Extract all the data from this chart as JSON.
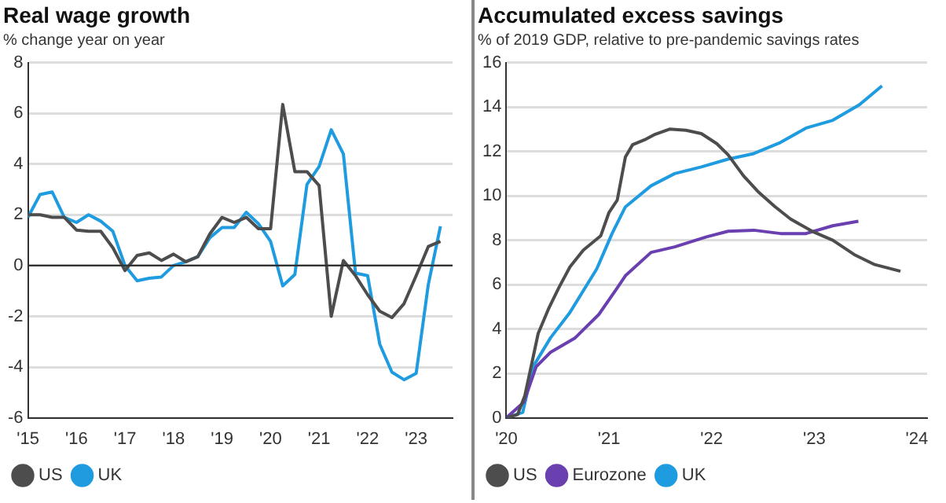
{
  "chart_data": [
    {
      "type": "line",
      "title": "Real wage growth",
      "subtitle": "% change year on year",
      "xlim": [
        2015,
        2023.75
      ],
      "xticks": [
        {
          "value": 2015,
          "label": "'15"
        },
        {
          "value": 2016,
          "label": "'16"
        },
        {
          "value": 2017,
          "label": "'17"
        },
        {
          "value": 2018,
          "label": "'18"
        },
        {
          "value": 2019,
          "label": "'19"
        },
        {
          "value": 2020,
          "label": "'20"
        },
        {
          "value": 2021,
          "label": "'21"
        },
        {
          "value": 2022,
          "label": "'22"
        },
        {
          "value": 2023,
          "label": "'23"
        }
      ],
      "ylim": [
        -6,
        8
      ],
      "yticks": [
        -6,
        -4,
        -2,
        0,
        2,
        4,
        6,
        8
      ],
      "grid": "y",
      "legend": "bottom",
      "marker": "none",
      "line_style": "solid",
      "ref_lines": [
        {
          "axis": "y",
          "value": 0,
          "color": "#333333"
        }
      ],
      "x": [
        2015,
        2015.25,
        2015.5,
        2015.75,
        2016,
        2016.25,
        2016.5,
        2016.75,
        2017,
        2017.25,
        2017.5,
        2017.75,
        2018,
        2018.25,
        2018.5,
        2018.75,
        2019,
        2019.25,
        2019.5,
        2019.75,
        2020,
        2020.25,
        2020.5,
        2020.75,
        2021,
        2021.25,
        2021.5,
        2021.75,
        2022,
        2022.25,
        2022.5,
        2022.75,
        2023,
        2023.25,
        2023.5
      ],
      "series": [
        {
          "name": "US",
          "color": "#4d4d4d",
          "values": [
            2.0,
            2.0,
            1.9,
            1.9,
            1.4,
            1.35,
            1.35,
            0.7,
            -0.2,
            0.4,
            0.5,
            0.2,
            0.45,
            0.15,
            0.35,
            1.25,
            1.9,
            1.7,
            1.9,
            1.45,
            1.45,
            6.35,
            3.7,
            3.7,
            3.15,
            -2.0,
            0.2,
            -0.4,
            -1.15,
            -1.8,
            -2.05,
            -1.5,
            -0.4,
            0.75,
            0.95
          ]
        },
        {
          "name": "UK",
          "color": "#1f9be0",
          "values": [
            1.9,
            2.8,
            2.9,
            1.9,
            1.7,
            2.0,
            1.75,
            1.35,
            0.0,
            -0.6,
            -0.5,
            -0.45,
            0.0,
            0.15,
            0.35,
            1.1,
            1.5,
            1.5,
            2.1,
            1.65,
            0.95,
            -0.8,
            -0.35,
            3.2,
            3.9,
            5.35,
            4.4,
            -0.3,
            -0.4,
            -3.1,
            -4.2,
            -4.5,
            -4.25,
            -0.75,
            1.55
          ]
        }
      ]
    },
    {
      "type": "line",
      "title": "Accumulated excess savings",
      "subtitle": "% of 2019 GDP, relative to pre-pandemic savings rates",
      "xlim": [
        2020,
        2024.1
      ],
      "xticks": [
        {
          "value": 2020,
          "label": "'20"
        },
        {
          "value": 2021,
          "label": "'21"
        },
        {
          "value": 2022,
          "label": "'22"
        },
        {
          "value": 2023,
          "label": "'23"
        },
        {
          "value": 2024,
          "label": "'24"
        }
      ],
      "ylim": [
        0,
        16
      ],
      "yticks": [
        0,
        2,
        4,
        6,
        8,
        10,
        12,
        14,
        16
      ],
      "grid": "y",
      "legend": "bottom",
      "marker": "none",
      "line_style": "solid",
      "series": [
        {
          "name": "US",
          "color": "#4d4d4d",
          "x": [
            2020,
            2020.11,
            2020.18,
            2020.25,
            2020.31,
            2020.41,
            2020.51,
            2020.62,
            2020.75,
            2020.92,
            2021,
            2021.08,
            2021.16,
            2021.23,
            2021.36,
            2021.44,
            2021.59,
            2021.75,
            2021.9,
            2022.05,
            2022.16,
            2022.31,
            2022.46,
            2022.62,
            2022.77,
            2022.98,
            2023.18,
            2023.39,
            2023.59,
            2023.84
          ],
          "values": [
            0,
            0.15,
            1.0,
            2.5,
            3.8,
            4.9,
            5.85,
            6.8,
            7.55,
            8.2,
            9.25,
            9.8,
            11.75,
            12.3,
            12.55,
            12.75,
            13.0,
            12.95,
            12.8,
            12.35,
            11.85,
            10.9,
            10.15,
            9.5,
            8.95,
            8.4,
            8.0,
            7.35,
            6.9,
            6.6
          ]
        },
        {
          "name": "Eurozone",
          "color": "#6a3fb0",
          "x": [
            2020,
            2020.17,
            2020.29,
            2020.43,
            2020.67,
            2020.9,
            2021.08,
            2021.16,
            2021.41,
            2021.64,
            2021.95,
            2022.16,
            2022.41,
            2022.67,
            2022.92,
            2023.18,
            2023.43
          ],
          "values": [
            0,
            0.7,
            2.3,
            2.95,
            3.6,
            4.65,
            5.85,
            6.4,
            7.45,
            7.7,
            8.15,
            8.4,
            8.45,
            8.3,
            8.3,
            8.65,
            8.85
          ]
        },
        {
          "name": "UK",
          "color": "#1f9be0",
          "x": [
            2020,
            2020.16,
            2020.26,
            2020.43,
            2020.62,
            2020.88,
            2021.03,
            2021.16,
            2021.41,
            2021.64,
            2021.9,
            2022.16,
            2022.41,
            2022.67,
            2022.92,
            2023.18,
            2023.44,
            2023.66
          ],
          "values": [
            0,
            0.25,
            2.3,
            3.6,
            4.75,
            6.7,
            8.3,
            9.5,
            10.45,
            11.0,
            11.3,
            11.65,
            11.9,
            12.4,
            13.05,
            13.4,
            14.1,
            14.95
          ]
        }
      ]
    }
  ]
}
